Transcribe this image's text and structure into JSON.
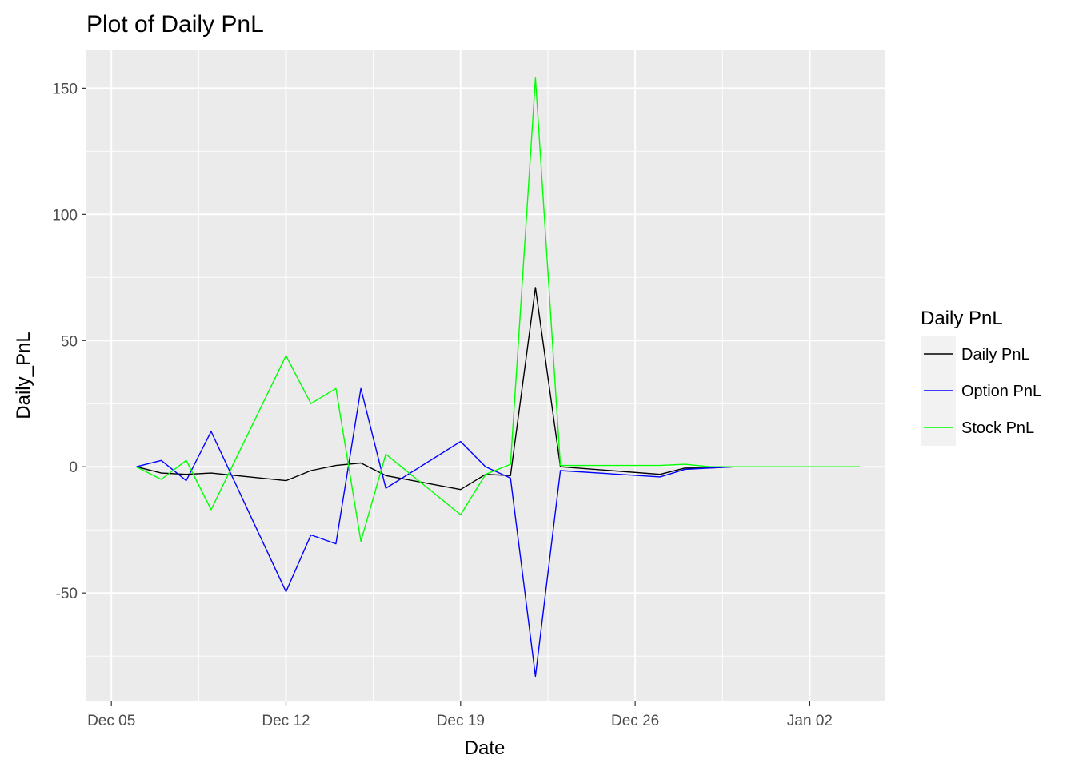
{
  "chart_data": {
    "type": "line",
    "title": "Plot of Daily PnL",
    "xlabel": "Date",
    "ylabel": "Daily_PnL",
    "x_tick_labels": [
      "Dec 05",
      "Dec 12",
      "Dec 19",
      "Dec 26",
      "Jan 02"
    ],
    "x_tick_dates": [
      "2016-12-05",
      "2016-12-12",
      "2016-12-19",
      "2016-12-26",
      "2017-01-02"
    ],
    "xlim": [
      "2016-12-04",
      "2017-01-05"
    ],
    "y_ticks": [
      -50,
      0,
      50,
      100,
      150
    ],
    "ylim": [
      -93,
      165
    ],
    "grid": true,
    "legend": {
      "title": "Daily PnL",
      "position": "right"
    },
    "x": [
      "2016-12-06",
      "2016-12-07",
      "2016-12-08",
      "2016-12-09",
      "2016-12-12",
      "2016-12-13",
      "2016-12-14",
      "2016-12-15",
      "2016-12-16",
      "2016-12-19",
      "2016-12-20",
      "2016-12-21",
      "2016-12-22",
      "2016-12-23",
      "2016-12-27",
      "2016-12-28",
      "2016-12-29",
      "2016-12-30",
      "2017-01-03",
      "2017-01-04"
    ],
    "series": [
      {
        "name": "Daily PnL",
        "color": "#000000",
        "values": [
          0,
          -2.5,
          -3,
          -2.5,
          -5.5,
          -1.5,
          0.5,
          1.5,
          -3.5,
          -9,
          -3,
          -3.5,
          71,
          0,
          -3,
          -0.5,
          -0.5,
          0,
          0,
          0
        ]
      },
      {
        "name": "Option PnL",
        "color": "#0000ff",
        "values": [
          0,
          2.5,
          -5.5,
          14,
          -49.5,
          -27,
          -30.5,
          31,
          -8.5,
          10,
          0,
          -4.5,
          -83,
          -1.5,
          -4,
          -1,
          -0.5,
          0,
          0,
          0
        ]
      },
      {
        "name": "Stock PnL",
        "color": "#00ff00",
        "values": [
          0,
          -5,
          2.5,
          -17,
          44,
          25,
          31,
          -29.5,
          5,
          -19,
          -3,
          1,
          154,
          0.5,
          0.5,
          1,
          0,
          0,
          0,
          0
        ]
      }
    ]
  }
}
